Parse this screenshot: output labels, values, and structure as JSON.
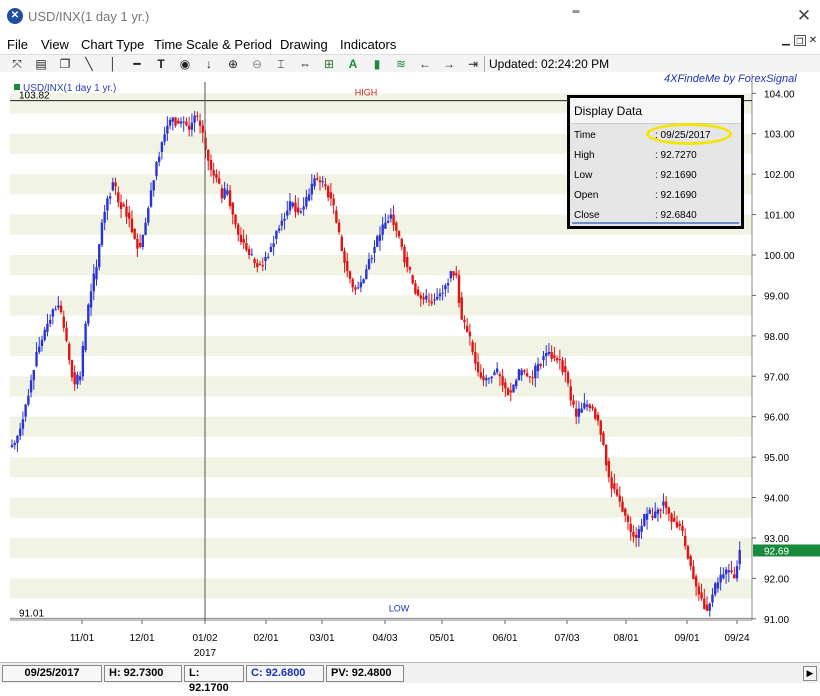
{
  "window": {
    "title": "USD/INX(1 day  1 yr.)",
    "icon": "fx-logo-icon"
  },
  "menu": [
    "File",
    "View",
    "Chart Type",
    "Time Scale & Period",
    "Drawing",
    "Indicators"
  ],
  "toolbar": {
    "icons": [
      "symbol-icon",
      "print-icon",
      "copy-icon",
      "line-draw-icon",
      "vertical-line-icon",
      "horizontal-line-icon",
      "text-icon",
      "circle-target-icon",
      "arrow-down-icon",
      "zoom-in-icon",
      "zoom-out-icon",
      "fit-icon",
      "expand-icon",
      "fibonacci-icon",
      "bar-chart-icon",
      "zigzag-icon",
      "arrow-left-icon",
      "arrow-right-icon",
      "scroll-end-icon"
    ],
    "updated": "Updated: 02:24:20 PM"
  },
  "brand": "4XFindeMe by ForexSignal",
  "chart_data": {
    "type": "candlestick",
    "symbol_label": "USD/INX(1 day  1 yr.)",
    "y_ticks": [
      "91.00",
      "92.00",
      "93.00",
      "94.00",
      "95.00",
      "96.00",
      "97.00",
      "98.00",
      "99.00",
      "100.00",
      "101.00",
      "102.00",
      "103.00",
      "104.00"
    ],
    "ylim": [
      90.97,
      104.28
    ],
    "x_ticks": [
      "11/01",
      "12/01",
      "01/02",
      "02/01",
      "03/01",
      "04/03",
      "05/01",
      "06/01",
      "07/03",
      "08/01",
      "09/01",
      "09/24"
    ],
    "year_label": "2017",
    "high_label": "HIGH",
    "high_value": "103.82",
    "low_label": "LOW",
    "low_value": "91.01",
    "last_price": "92.69",
    "series_close": [
      95.35,
      95.7,
      96.3,
      96.9,
      97.6,
      97.9,
      98.3,
      98.65,
      98.75,
      98.2,
      97.4,
      96.8,
      97.0,
      98.3,
      99.1,
      99.7,
      100.8,
      101.4,
      101.8,
      101.3,
      101.2,
      100.9,
      100.4,
      100.2,
      100.8,
      101.6,
      102.3,
      102.8,
      103.2,
      103.4,
      103.25,
      103.3,
      103.1,
      103.45,
      103.2,
      102.6,
      102.1,
      101.9,
      101.4,
      101.6,
      101.0,
      100.5,
      100.3,
      100.0,
      99.8,
      99.75,
      99.95,
      100.2,
      100.6,
      100.85,
      101.1,
      101.3,
      101.05,
      101.2,
      101.5,
      101.9,
      101.8,
      101.7,
      101.4,
      100.8,
      100.1,
      99.6,
      99.2,
      99.2,
      99.4,
      99.9,
      100.2,
      100.5,
      100.8,
      101.0,
      100.6,
      100.2,
      99.7,
      99.3,
      99.0,
      98.9,
      98.85,
      98.9,
      99.05,
      99.25,
      99.6,
      99.5,
      98.4,
      98.1,
      97.6,
      97.1,
      96.9,
      96.95,
      97.1,
      97.0,
      96.7,
      96.6,
      96.9,
      97.15,
      97.0,
      96.95,
      97.3,
      97.5,
      97.6,
      97.45,
      97.4,
      97.1,
      96.4,
      96.0,
      96.2,
      96.3,
      96.2,
      95.9,
      95.3,
      94.5,
      94.2,
      93.9,
      93.55,
      93.15,
      93.0,
      93.3,
      93.6,
      93.5,
      93.7,
      93.9,
      93.6,
      93.4,
      93.3,
      92.8,
      92.3,
      91.8,
      91.5,
      91.2,
      91.6,
      91.9,
      92.1,
      92.2,
      92.0,
      92.7
    ],
    "high_of_range": 103.82,
    "low_of_range": 91.01
  },
  "display_data": {
    "title": "Display Data",
    "rows": [
      {
        "label": "Time",
        "value": ": 09/25/2017"
      },
      {
        "label": "High",
        "value": ": 92.7270"
      },
      {
        "label": "Low",
        "value": ": 92.1690"
      },
      {
        "label": "Open",
        "value": ": 92.1690"
      },
      {
        "label": "Close",
        "value": ": 92.6840"
      }
    ]
  },
  "status": {
    "date": "09/25/2017",
    "high": "H: 92.7300",
    "low": "L: 92.1700",
    "close": "C: 92.6800",
    "pv": "PV: 92.4800"
  },
  "colors": {
    "up": "#2b33d6",
    "down": "#e01414",
    "band": "#f1f4e4",
    "accent": "#1a8a3c"
  }
}
